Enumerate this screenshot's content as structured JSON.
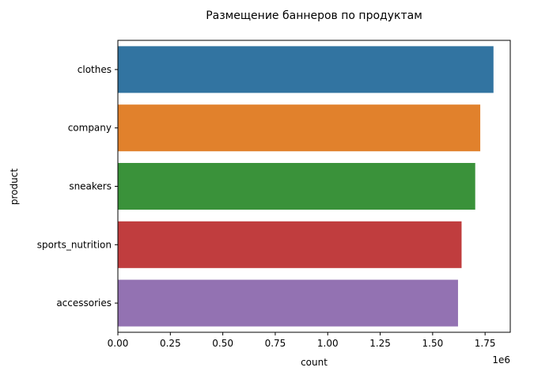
{
  "chart_data": {
    "type": "bar",
    "orientation": "horizontal",
    "title": "Размещение баннеров по продуктам",
    "xlabel": "count",
    "ylabel": "product",
    "x_scale_label": "1e6",
    "categories": [
      "clothes",
      "company",
      "sneakers",
      "sports_nutrition",
      "accessories"
    ],
    "values": [
      1790000,
      1727000,
      1703000,
      1638000,
      1621000
    ],
    "xlim": [
      0,
      1870000
    ],
    "x_ticks": [
      0,
      250000,
      500000,
      750000,
      1000000,
      1250000,
      1500000,
      1750000
    ],
    "x_tick_labels": [
      "0.00",
      "0.25",
      "0.50",
      "0.75",
      "1.00",
      "1.25",
      "1.50",
      "1.75"
    ],
    "grid": false,
    "legend": "none",
    "colors": [
      "#3274a1",
      "#e1812c",
      "#3a923a",
      "#c03d3e",
      "#9372b2"
    ]
  }
}
